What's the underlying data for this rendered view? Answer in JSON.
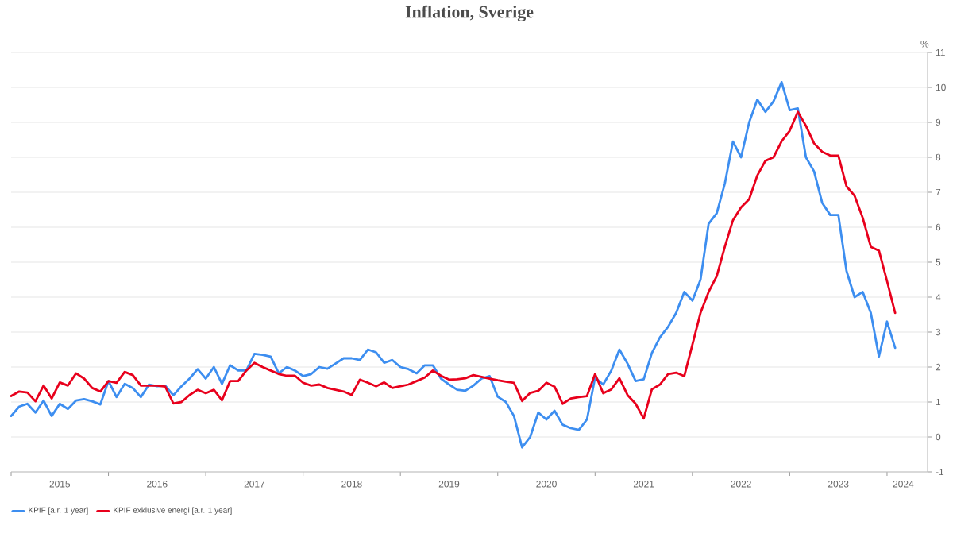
{
  "chart_data": {
    "type": "line",
    "title": "Inflation, Sverige",
    "ylabel": "%",
    "x": [
      "2015-01",
      "2015-02",
      "2015-03",
      "2015-04",
      "2015-05",
      "2015-06",
      "2015-07",
      "2015-08",
      "2015-09",
      "2015-10",
      "2015-11",
      "2015-12",
      "2016-01",
      "2016-02",
      "2016-03",
      "2016-04",
      "2016-05",
      "2016-06",
      "2016-07",
      "2016-08",
      "2016-09",
      "2016-10",
      "2016-11",
      "2016-12",
      "2017-01",
      "2017-02",
      "2017-03",
      "2017-04",
      "2017-05",
      "2017-06",
      "2017-07",
      "2017-08",
      "2017-09",
      "2017-10",
      "2017-11",
      "2017-12",
      "2018-01",
      "2018-02",
      "2018-03",
      "2018-04",
      "2018-05",
      "2018-06",
      "2018-07",
      "2018-08",
      "2018-09",
      "2018-10",
      "2018-11",
      "2018-12",
      "2019-01",
      "2019-02",
      "2019-03",
      "2019-04",
      "2019-05",
      "2019-06",
      "2019-07",
      "2019-08",
      "2019-09",
      "2019-10",
      "2019-11",
      "2019-12",
      "2020-01",
      "2020-02",
      "2020-03",
      "2020-04",
      "2020-05",
      "2020-06",
      "2020-07",
      "2020-08",
      "2020-09",
      "2020-10",
      "2020-11",
      "2020-12",
      "2021-01",
      "2021-02",
      "2021-03",
      "2021-04",
      "2021-05",
      "2021-06",
      "2021-07",
      "2021-08",
      "2021-09",
      "2021-10",
      "2021-11",
      "2021-12",
      "2022-01",
      "2022-02",
      "2022-03",
      "2022-04",
      "2022-05",
      "2022-06",
      "2022-07",
      "2022-08",
      "2022-09",
      "2022-10",
      "2022-11",
      "2022-12",
      "2023-01",
      "2023-02",
      "2023-03",
      "2023-04",
      "2023-05",
      "2023-06",
      "2023-07",
      "2023-08",
      "2023-09",
      "2023-10",
      "2023-11",
      "2023-12",
      "2024-01",
      "2024-02"
    ],
    "series": [
      {
        "name": "KPIF [a.r. 1 year]",
        "color": "#3d8ef0",
        "values": [
          0.6,
          0.87,
          0.95,
          0.7,
          1.04,
          0.6,
          0.95,
          0.8,
          1.04,
          1.08,
          1.02,
          0.93,
          1.6,
          1.14,
          1.52,
          1.4,
          1.14,
          1.5,
          1.45,
          1.47,
          1.19,
          1.45,
          1.67,
          1.94,
          1.67,
          2.0,
          1.52,
          2.05,
          1.9,
          1.9,
          2.38,
          2.35,
          2.3,
          1.82,
          2.0,
          1.9,
          1.74,
          1.8,
          2.0,
          1.95,
          2.1,
          2.25,
          2.25,
          2.2,
          2.5,
          2.42,
          2.12,
          2.2,
          2.0,
          1.94,
          1.82,
          2.05,
          2.05,
          1.67,
          1.5,
          1.35,
          1.32,
          1.47,
          1.67,
          1.74,
          1.15,
          1.0,
          0.6,
          -0.3,
          0.0,
          0.7,
          0.5,
          0.75,
          0.35,
          0.25,
          0.2,
          0.5,
          1.7,
          1.5,
          1.9,
          2.5,
          2.1,
          1.6,
          1.65,
          2.4,
          2.85,
          3.15,
          3.55,
          4.15,
          3.9,
          4.5,
          6.1,
          6.4,
          7.25,
          8.45,
          8.0,
          9.0,
          9.65,
          9.3,
          9.6,
          10.15,
          9.35,
          9.4,
          8.0,
          7.6,
          6.7,
          6.35,
          6.35,
          4.75,
          4.0,
          4.15,
          3.55,
          2.3,
          3.3,
          2.55
        ]
      },
      {
        "name": "KPIF exklusive energi [a.r. 1 year]",
        "color": "#e8001c",
        "values": [
          1.17,
          1.3,
          1.27,
          1.02,
          1.47,
          1.1,
          1.56,
          1.47,
          1.82,
          1.67,
          1.4,
          1.3,
          1.6,
          1.55,
          1.86,
          1.77,
          1.47,
          1.47,
          1.47,
          1.44,
          0.96,
          1.0,
          1.2,
          1.35,
          1.25,
          1.35,
          1.05,
          1.6,
          1.6,
          1.9,
          2.12,
          2.0,
          1.9,
          1.8,
          1.75,
          1.75,
          1.55,
          1.47,
          1.5,
          1.4,
          1.35,
          1.3,
          1.2,
          1.64,
          1.55,
          1.45,
          1.56,
          1.4,
          1.45,
          1.5,
          1.6,
          1.7,
          1.9,
          1.75,
          1.64,
          1.65,
          1.68,
          1.77,
          1.72,
          1.67,
          1.62,
          1.58,
          1.55,
          1.03,
          1.26,
          1.32,
          1.55,
          1.44,
          0.95,
          1.1,
          1.14,
          1.17,
          1.8,
          1.25,
          1.36,
          1.68,
          1.2,
          0.95,
          0.53,
          1.36,
          1.5,
          1.8,
          1.84,
          1.74,
          2.64,
          3.55,
          4.15,
          4.6,
          5.44,
          6.2,
          6.57,
          6.8,
          7.48,
          7.9,
          8.0,
          8.46,
          8.76,
          9.3,
          8.9,
          8.4,
          8.16,
          8.05,
          8.05,
          7.17,
          6.9,
          6.27,
          5.44,
          5.33,
          4.46,
          3.55
        ]
      }
    ],
    "xlim": [
      "2015-01",
      "2024-06"
    ],
    "xticks": [
      {
        "value": "2015-01",
        "label": null
      },
      {
        "value": "2015-07",
        "label": "2015"
      },
      {
        "value": "2016-01",
        "label": null
      },
      {
        "value": "2016-07",
        "label": "2016"
      },
      {
        "value": "2017-01",
        "label": null
      },
      {
        "value": "2017-07",
        "label": "2017"
      },
      {
        "value": "2018-01",
        "label": null
      },
      {
        "value": "2018-07",
        "label": "2018"
      },
      {
        "value": "2019-01",
        "label": null
      },
      {
        "value": "2019-07",
        "label": "2019"
      },
      {
        "value": "2020-01",
        "label": null
      },
      {
        "value": "2020-07",
        "label": "2020"
      },
      {
        "value": "2021-01",
        "label": null
      },
      {
        "value": "2021-07",
        "label": "2021"
      },
      {
        "value": "2022-01",
        "label": null
      },
      {
        "value": "2022-07",
        "label": "2022"
      },
      {
        "value": "2023-01",
        "label": null
      },
      {
        "value": "2023-07",
        "label": "2023"
      },
      {
        "value": "2024-01",
        "label": null
      },
      {
        "value": "2024-03",
        "label": "2024"
      }
    ],
    "ylim": [
      -1,
      11
    ],
    "yticks": [
      -1,
      0,
      1,
      2,
      3,
      4,
      5,
      6,
      7,
      8,
      9,
      10,
      11
    ],
    "grid": "y",
    "legend": "bottom left",
    "marker": "none",
    "line_style": "solid"
  }
}
